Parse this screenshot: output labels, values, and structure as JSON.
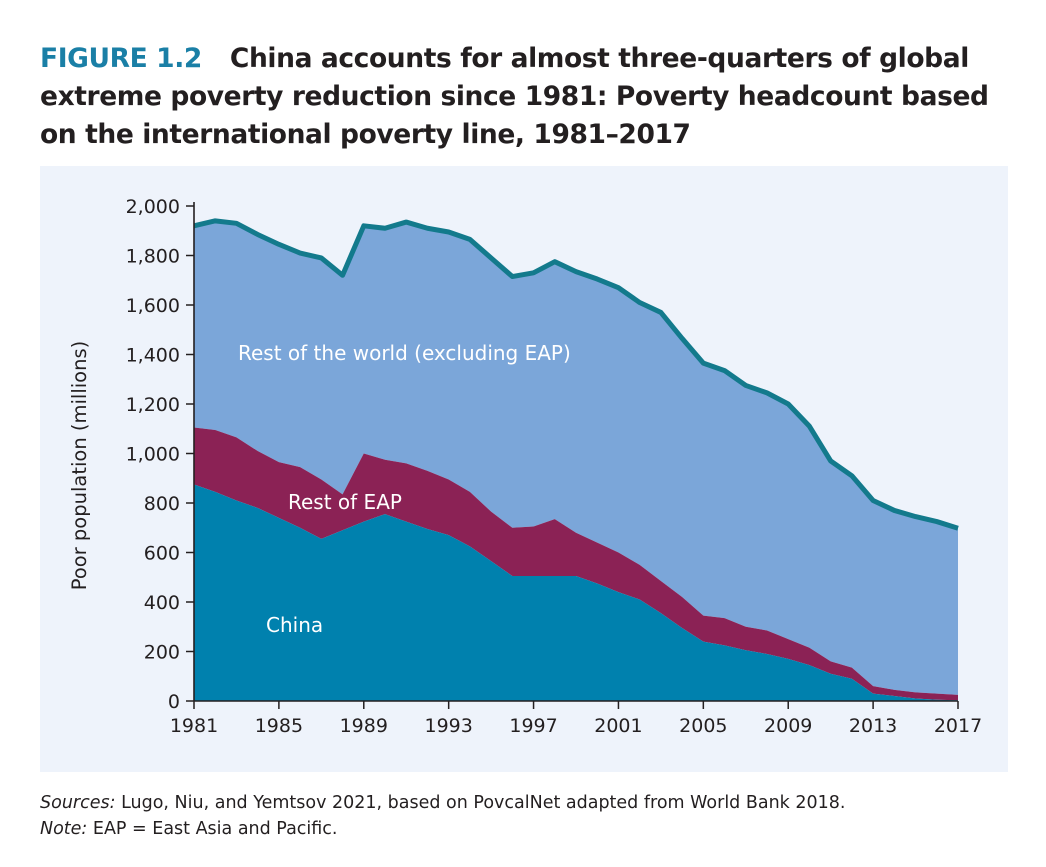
{
  "figure": {
    "label": "FIGURE 1.2",
    "title": "China accounts for almost three-quarters of global extreme poverty reduction since 1981: Poverty headcount based on the international poverty line, 1981–2017"
  },
  "colors": {
    "china": "#0081ae",
    "rest_of_eap": "#8b2255",
    "rest_of_world": "#7ba6d9",
    "total_line": "#137a8c",
    "panel_bg": "#eef3fb"
  },
  "chart_data": {
    "type": "area",
    "stacked": true,
    "title": "",
    "xlabel": "",
    "ylabel": "Poor population (millions)",
    "ylim": [
      0,
      2000
    ],
    "yticks": [
      0,
      200,
      400,
      600,
      800,
      1000,
      1200,
      1400,
      1600,
      1800,
      2000
    ],
    "ytick_labels": [
      "0",
      "200",
      "400",
      "600",
      "800",
      "1,000",
      "1,200",
      "1,400",
      "1,600",
      "1,800",
      "2,000"
    ],
    "xlim": [
      1981,
      2017
    ],
    "xticks": [
      1981,
      1985,
      1989,
      1993,
      1997,
      2001,
      2005,
      2009,
      2013,
      2017
    ],
    "x": [
      1981,
      1982,
      1983,
      1984,
      1985,
      1986,
      1987,
      1988,
      1989,
      1990,
      1991,
      1992,
      1993,
      1994,
      1995,
      1996,
      1997,
      1998,
      1999,
      2000,
      2001,
      2002,
      2003,
      2004,
      2005,
      2006,
      2007,
      2008,
      2009,
      2010,
      2011,
      2012,
      2013,
      2014,
      2015,
      2016,
      2017
    ],
    "series": [
      {
        "name": "China",
        "values": [
          875,
          845,
          810,
          780,
          740,
          700,
          655,
          690,
          725,
          755,
          725,
          695,
          670,
          625,
          565,
          505,
          505,
          505,
          505,
          475,
          440,
          410,
          355,
          295,
          240,
          225,
          205,
          190,
          170,
          145,
          110,
          90,
          30,
          20,
          10,
          5,
          3
        ]
      },
      {
        "name": "Rest of EAP",
        "values": [
          230,
          250,
          255,
          230,
          225,
          245,
          240,
          145,
          275,
          220,
          235,
          235,
          225,
          220,
          200,
          195,
          200,
          230,
          175,
          165,
          160,
          140,
          130,
          125,
          105,
          110,
          95,
          95,
          80,
          70,
          50,
          45,
          30,
          25,
          25,
          25,
          22
        ]
      },
      {
        "name": "Rest of the  world (excluding EAP)",
        "values": [
          815,
          845,
          865,
          875,
          880,
          865,
          895,
          885,
          920,
          935,
          975,
          980,
          1000,
          1020,
          1025,
          1015,
          1025,
          1040,
          1055,
          1065,
          1070,
          1060,
          1085,
          1045,
          1020,
          1000,
          975,
          960,
          950,
          895,
          810,
          775,
          750,
          725,
          710,
          695,
          673
        ]
      }
    ],
    "area_labels": {
      "china": "China",
      "rest_of_eap": "Rest of EAP",
      "rest_of_world": "Rest of the  world (excluding EAP)"
    }
  },
  "notes": {
    "sources_label": "Sources:",
    "sources_text": " Lugo, Niu, and Yemtsov 2021, based on PovcalNet adapted from World Bank 2018.",
    "note_label": "Note:",
    "note_text": " EAP = East Asia and Pacific."
  }
}
